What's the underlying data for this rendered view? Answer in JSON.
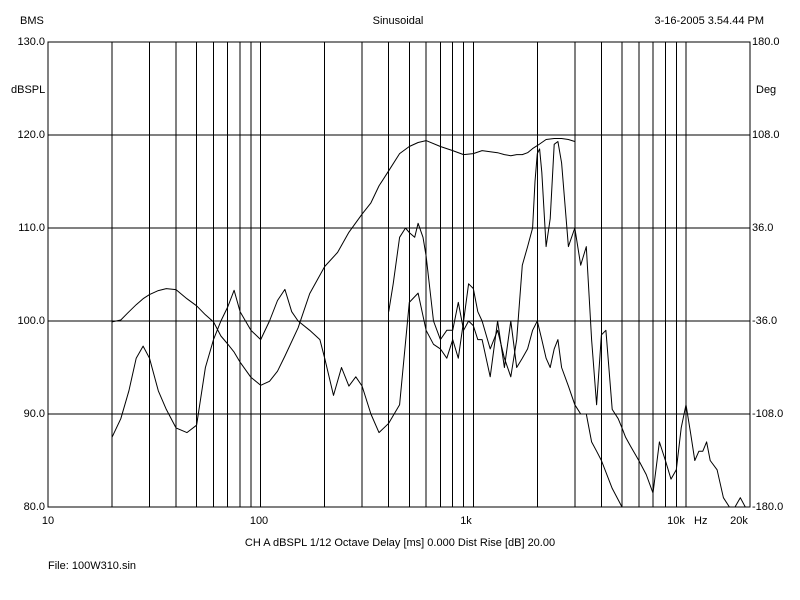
{
  "header": {
    "left": "BMS",
    "center": "Sinusoidal",
    "right": "3-16-2005 3.54.44 PM"
  },
  "footer": {
    "settings": "CH A   dBSPL   1/12 Octave   Delay [ms] 0.000   Dist Rise [dB] 20.00",
    "file": "File: 100W310.sin"
  },
  "chart_data": {
    "type": "line",
    "x_scale": "log",
    "xlim": [
      10,
      20000
    ],
    "ylim": [
      80,
      130
    ],
    "y2lim": [
      -180,
      180
    ],
    "ylabel": "dBSPL",
    "y2label": "Deg",
    "x_unit_label": "Hz",
    "x_ticks": [
      {
        "value": 10,
        "label": "10"
      },
      {
        "value": 100,
        "label": "100"
      },
      {
        "value": 1000,
        "label": "1k"
      },
      {
        "value": 10000,
        "label": "10k"
      },
      {
        "value": 20000,
        "label": "20k"
      }
    ],
    "y_ticks": [
      "80.0",
      "90.0",
      "100.0",
      "110.0",
      "120.0",
      "130.0"
    ],
    "y2_ticks": [
      "-180.0",
      "-108.0",
      "-36.0",
      "36.0",
      "108.0",
      "180.0"
    ],
    "grid": true,
    "series": [
      {
        "axis": "left",
        "x": [
          20,
          22,
          24,
          26,
          28,
          30,
          33,
          36,
          40,
          45,
          50,
          55,
          60,
          65,
          70,
          75,
          80,
          90,
          100,
          110,
          120,
          130,
          140,
          150,
          170,
          190,
          200,
          220,
          240,
          260,
          280,
          300,
          330,
          360,
          400,
          450,
          500,
          550,
          600,
          650,
          700,
          750,
          800,
          850,
          900,
          950,
          1000,
          1050,
          1100,
          1200,
          1300,
          1400,
          1500,
          1600,
          1700,
          1800,
          1900,
          1950,
          2000,
          2050,
          2100,
          2200,
          2300,
          2400,
          2500,
          2600,
          2800,
          3000,
          3200,
          3400,
          3600,
          3800,
          4000,
          4200,
          4500,
          4800,
          5000,
          5200,
          5500,
          6000,
          6500,
          7000,
          7500,
          8000,
          8500,
          9000,
          9500,
          10000,
          10500,
          11000,
          11500,
          12000,
          12500,
          13000,
          14000,
          15000,
          16000,
          17000,
          18000,
          19000,
          20000
        ],
        "y": [
          87.5,
          89.5,
          92.5,
          96,
          97.3,
          96,
          92.5,
          90.5,
          88.5,
          88,
          88.8,
          95,
          98,
          100,
          101.5,
          103.3,
          101,
          99,
          98,
          100,
          102.2,
          103.4,
          101,
          100,
          99,
          98,
          96,
          92,
          95,
          93,
          94,
          93,
          90,
          88,
          89,
          91,
          102,
          103,
          99,
          97.5,
          97,
          96,
          98,
          96,
          100,
          104,
          103.5,
          101,
          100,
          97,
          99,
          96,
          94,
          98,
          106,
          108,
          110,
          115,
          118,
          118.5,
          116,
          108,
          111,
          119,
          119.3,
          117,
          108,
          110,
          106,
          108,
          98,
          91,
          98.5,
          99,
          90.5,
          89.5,
          88.5,
          87.5,
          86.5,
          85,
          83.5,
          81.5,
          87,
          85,
          83,
          84,
          88.5,
          91,
          88,
          85,
          86,
          86,
          87,
          85,
          84,
          81,
          80,
          80,
          81,
          80,
          80
        ]
      },
      {
        "axis": "left",
        "x": [
          400,
          420,
          450,
          480,
          500,
          530,
          550,
          580,
          600,
          650,
          700,
          750,
          800,
          850,
          900,
          950,
          1000,
          1050,
          1100,
          1200,
          1300,
          1400,
          1500,
          1600,
          1700,
          1800,
          1900,
          2000,
          2100,
          2200,
          2300,
          2400,
          2500,
          2600,
          2800,
          3000,
          3200,
          3400,
          3600,
          3800,
          4000,
          4500,
          5000,
          5500,
          6000
        ],
        "y": [
          101,
          104,
          109,
          110,
          109.5,
          109,
          110.5,
          109,
          107,
          100,
          98,
          99,
          99,
          102,
          99,
          100,
          99.5,
          98,
          98,
          94,
          100,
          95,
          100,
          95,
          96,
          97,
          99,
          100,
          98,
          96,
          95,
          97,
          98,
          95,
          93,
          91,
          90,
          90,
          87,
          86,
          85,
          82,
          80,
          80,
          80
        ]
      },
      {
        "axis": "right",
        "x": [
          20,
          22,
          24,
          26,
          28,
          30,
          33,
          36,
          40,
          45,
          50,
          55,
          60,
          65,
          70,
          75,
          80,
          90,
          100,
          110,
          120,
          130,
          150,
          170,
          200,
          230,
          260,
          300,
          330,
          360,
          400,
          450,
          500,
          550,
          600,
          700,
          800,
          900,
          1000,
          1100,
          1200,
          1300,
          1400,
          1500,
          1600,
          1700,
          1800,
          1900,
          2000,
          2100,
          2200,
          2400,
          2600,
          2800,
          3000
        ],
        "y": [
          -36.7,
          -35.2,
          -28.9,
          -23.4,
          -18.7,
          -15.6,
          -12.5,
          -10.9,
          -11.7,
          -18.7,
          -24.2,
          -31.2,
          -36.7,
          -47.6,
          -53.8,
          -60.1,
          -67.9,
          -79.6,
          -85.8,
          -82.7,
          -74.9,
          -63.2,
          -41.3,
          -14.8,
          6.2,
          17.1,
          32.7,
          46.8,
          55.4,
          68.6,
          80.3,
          93.6,
          99.1,
          102.2,
          103.7,
          99.1,
          95.9,
          92.8,
          93.6,
          95.9,
          95.1,
          94.3,
          92.8,
          92.0,
          92.8,
          92.8,
          94.3,
          97.5,
          99.8,
          102.2,
          104.5,
          105.3,
          105.3,
          104.5,
          103.0
        ]
      }
    ]
  }
}
